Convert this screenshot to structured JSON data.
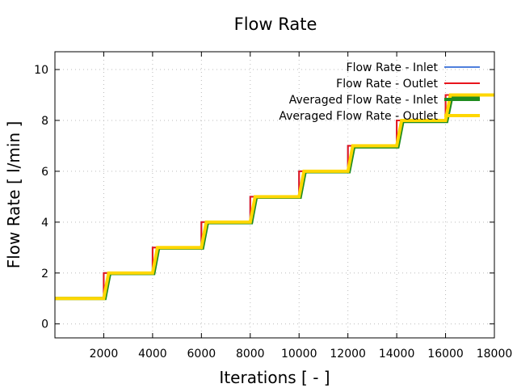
{
  "chart_data": {
    "type": "line",
    "title": "Flow Rate",
    "xlabel": "Iterations [ - ]",
    "ylabel": "Flow Rate [ l/min ]",
    "xlim": [
      0,
      18000
    ],
    "ylim": [
      -0.55,
      10.7
    ],
    "xticks": [
      2000,
      4000,
      6000,
      8000,
      10000,
      12000,
      14000,
      16000,
      18000
    ],
    "yticks": [
      0,
      2,
      4,
      6,
      8,
      10
    ],
    "grid": true,
    "legend_position": "top-right",
    "series": [
      {
        "name": "Flow Rate - Inlet",
        "color": "#4f7fdc",
        "width": 2,
        "x": [
          0,
          2000,
          2000,
          4000,
          4000,
          6000,
          6000,
          8000,
          8000,
          10000,
          10000,
          12000,
          12000,
          14000,
          14000,
          16000,
          16000,
          18000
        ],
        "y": [
          1,
          1,
          2,
          2,
          3,
          3,
          4,
          4,
          5,
          5,
          6,
          6,
          7,
          7,
          8,
          8,
          9,
          9
        ]
      },
      {
        "name": "Flow Rate - Outlet",
        "color": "#e8141c",
        "width": 2,
        "x": [
          0,
          2000,
          2000,
          4000,
          4000,
          6000,
          6000,
          8000,
          8000,
          10000,
          10000,
          12000,
          12000,
          14000,
          14000,
          16000,
          16000,
          18000
        ],
        "y": [
          1,
          1,
          2,
          2,
          3,
          3,
          4,
          4,
          5,
          5,
          6,
          6,
          7,
          7,
          8,
          8,
          9,
          9
        ]
      },
      {
        "name": "Averaged Flow Rate - Inlet",
        "color": "#1f8c1f",
        "width": 4,
        "x": [
          0,
          2050,
          2250,
          4050,
          4250,
          6050,
          6250,
          8050,
          8250,
          10050,
          10250,
          12050,
          12250,
          14050,
          14250,
          16050,
          16250,
          17400
        ],
        "y": [
          1,
          1,
          1.98,
          1.98,
          2.98,
          2.98,
          3.98,
          3.98,
          4.98,
          4.98,
          5.98,
          5.98,
          6.96,
          6.96,
          7.96,
          7.96,
          8.88,
          8.88
        ]
      },
      {
        "name": "Averaged Flow Rate - Outlet",
        "color": "#ffd700",
        "width": 4,
        "x": [
          0,
          2000,
          2200,
          4000,
          4200,
          6000,
          6200,
          8000,
          8200,
          10000,
          10200,
          12000,
          12200,
          14000,
          14200,
          16000,
          16200,
          18000
        ],
        "y": [
          1,
          1,
          2,
          2,
          3,
          3,
          4,
          4,
          5,
          5,
          6,
          6,
          7,
          7,
          8,
          8,
          9,
          9
        ]
      }
    ]
  }
}
